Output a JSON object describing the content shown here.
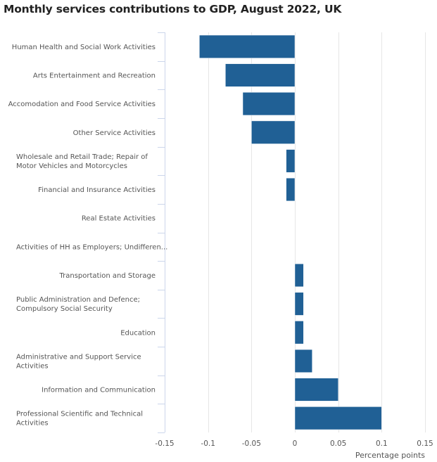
{
  "chart_data": {
    "type": "bar",
    "orientation": "horizontal",
    "title": "Monthly services contributions to GDP, August 2022, UK",
    "xlabel": "Percentage points",
    "ylabel": "",
    "xlim": [
      -0.15,
      0.15
    ],
    "xticks": [
      -0.15,
      -0.1,
      -0.05,
      0,
      0.05,
      0.1,
      0.15
    ],
    "xtick_labels": [
      "-0.15",
      "-0.1",
      "-0.05",
      "0",
      "0.05",
      "0.1",
      "0.15"
    ],
    "grid": true,
    "bar_color": "#206095",
    "categories": [
      "Human Health and Social Work Activities",
      "Arts Entertainment and Recreation",
      "Accomodation and Food Service Activities",
      "Other Service Activities",
      "Wholesale and Retail Trade; Repair of Motor Vehicles and Motorcycles",
      "Financial and Insurance Activities",
      "Real Estate Activities",
      "Activities of HH as Employers; Undifferen...",
      "Transportation and Storage",
      "Public Administration and Defence; Compulsory Social Security",
      "Education",
      "Administrative and Support Service Activities",
      "Information and Communication",
      "Professional Scientific and Technical Activities"
    ],
    "category_label_lines": [
      [
        "Human Health and Social Work Activities"
      ],
      [
        "Arts Entertainment and Recreation"
      ],
      [
        "Accomodation and Food Service Activities"
      ],
      [
        "Other Service Activities"
      ],
      [
        "Wholesale and Retail Trade; Repair of",
        "Motor Vehicles and Motorcycles"
      ],
      [
        "Financial and Insurance Activities"
      ],
      [
        "Real Estate Activities"
      ],
      [
        "Activities of HH as Employers; Undifferen..."
      ],
      [
        "Transportation and Storage"
      ],
      [
        "Public Administration and Defence;",
        "Compulsory Social Security"
      ],
      [
        "Education"
      ],
      [
        "Administrative and Support Service",
        "Activities"
      ],
      [
        "Information and Communication"
      ],
      [
        "Professional Scientific and Technical",
        "Activities"
      ]
    ],
    "values": [
      -0.11,
      -0.08,
      -0.06,
      -0.05,
      -0.01,
      -0.01,
      0,
      0,
      0.01,
      0.01,
      0.01,
      0.02,
      0.05,
      0.1
    ]
  }
}
